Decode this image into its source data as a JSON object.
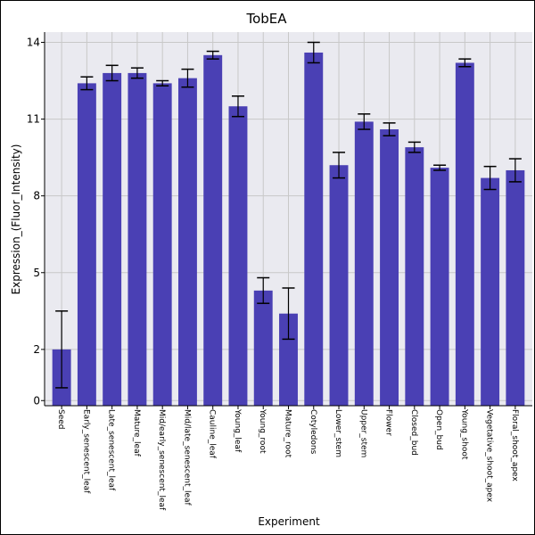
{
  "chart_data": {
    "type": "bar",
    "title": "TobEA",
    "xlabel": "Experiment",
    "ylabel": "Expression_(Fluor_Intensity)",
    "ylim": [
      -0.2,
      14.4
    ],
    "yticks": [
      0,
      2,
      5,
      8,
      11,
      14
    ],
    "grid": true,
    "bar_color": "#4a40b4",
    "categories": [
      "Seed",
      "Early_senescent_leaf",
      "Late_senescent_leaf",
      "Mature_leaf",
      "Mid/early_senescent_leaf",
      "Mid/late_senescent_leaf",
      "Cauline_leaf",
      "Young_leaf",
      "Young_root",
      "Mature_root",
      "Cotyledons",
      "Lower_stem",
      "Upper_stem",
      "Flower",
      "Closed_bud",
      "Open_bud",
      "Young_shoot",
      "Vegetative_shoot_apex",
      "Floral_shoot_apex"
    ],
    "values": [
      2.0,
      12.4,
      12.8,
      12.8,
      12.4,
      12.6,
      13.5,
      11.5,
      4.3,
      3.4,
      13.6,
      9.2,
      10.9,
      10.6,
      9.9,
      9.1,
      13.2,
      8.7,
      9.0
    ],
    "errors": [
      1.5,
      0.25,
      0.3,
      0.2,
      0.1,
      0.35,
      0.15,
      0.4,
      0.5,
      1.0,
      0.4,
      0.5,
      0.3,
      0.25,
      0.2,
      0.1,
      0.15,
      0.45,
      0.45
    ]
  }
}
